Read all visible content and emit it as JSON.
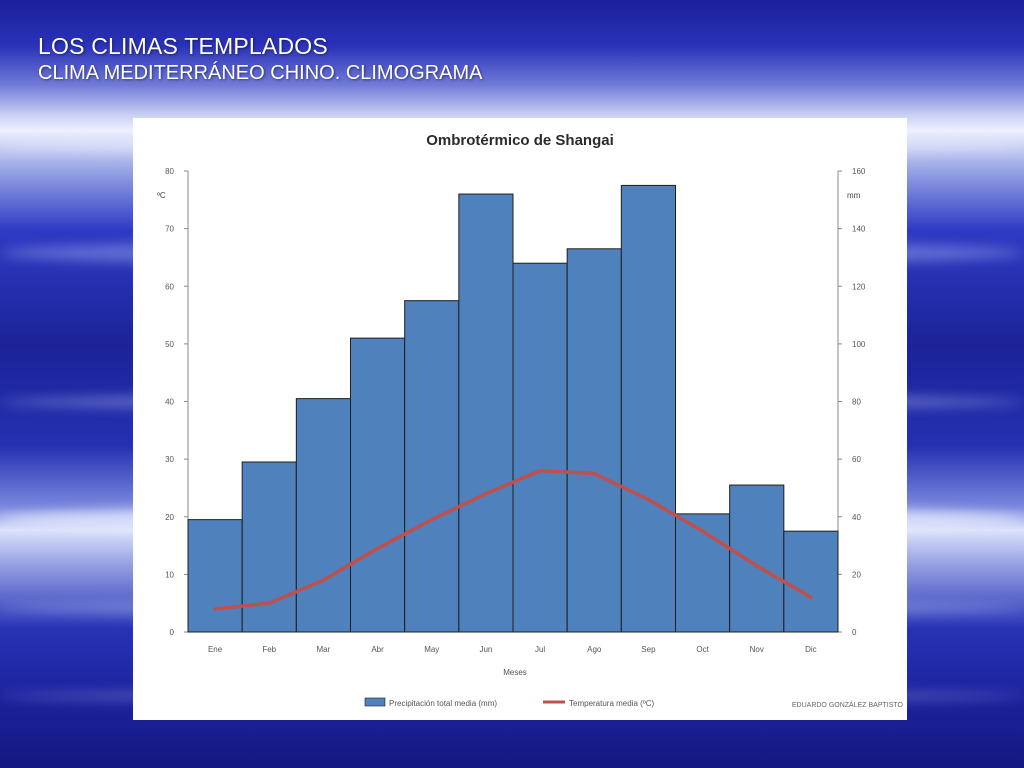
{
  "slide": {
    "title": "LOS CLIMAS TEMPLADOS",
    "subtitle": "CLIMA MEDITERRÁNEO CHINO. CLIMOGRAMA"
  },
  "colors": {
    "bar_fill": "#4f81bd",
    "bar_stroke": "#1f1f1f",
    "line": "#c0504d",
    "panel": "#ffffff"
  },
  "chart_data": {
    "type": "bar",
    "title": "Ombrotérmico de Shangai",
    "xlabel": "Meses",
    "ylabel_left": "ºC",
    "ylabel_right": "mm",
    "categories": [
      "Ene",
      "Feb",
      "Mar",
      "Abr",
      "May",
      "Jun",
      "Jul",
      "Ago",
      "Sep",
      "Oct",
      "Nov",
      "Dic"
    ],
    "left_axis": {
      "ylim": [
        0,
        80
      ],
      "ticks": [
        0,
        10,
        20,
        30,
        40,
        50,
        60,
        70,
        80
      ]
    },
    "right_axis": {
      "ylim": [
        0,
        160
      ],
      "ticks": [
        0,
        20,
        40,
        60,
        80,
        100,
        120,
        140,
        160
      ]
    },
    "series": [
      {
        "name": "Precipitación total media (mm)",
        "type": "bar",
        "axis": "right",
        "values": [
          39,
          59,
          81,
          102,
          115,
          152,
          128,
          133,
          155,
          41,
          51,
          35
        ]
      },
      {
        "name": "Temperatura media (ºC)",
        "type": "line",
        "axis": "left",
        "values": [
          4,
          5,
          9,
          14.5,
          19.5,
          24,
          28,
          27.5,
          23,
          17.5,
          11.5,
          6
        ]
      }
    ],
    "grid": false,
    "legend": "bottom",
    "credit": "EDUARDO GONZÁLEZ BAPTISTO"
  }
}
